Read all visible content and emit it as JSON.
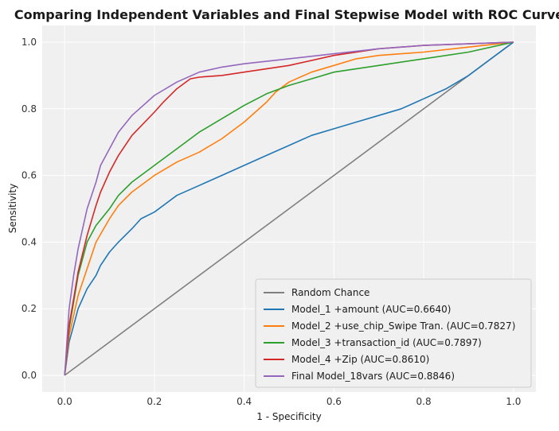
{
  "chart_data": {
    "type": "line",
    "title": "Comparing Independent Variables and Final Stepwise Model with ROC Curve",
    "xlabel": "1 - Specificity",
    "ylabel": "Sensitivity",
    "xlim": [
      -0.05,
      1.05
    ],
    "ylim": [
      -0.05,
      1.05
    ],
    "xticks": [
      "0.0",
      "0.2",
      "0.4",
      "0.6",
      "0.8",
      "1.0"
    ],
    "yticks": [
      "0.0",
      "0.2",
      "0.4",
      "0.6",
      "0.8",
      "1.0"
    ],
    "grid": true,
    "legend_position": "lower-right",
    "background_color": "#f0f0f0",
    "series": [
      {
        "name": "Random Chance",
        "color": "#808080",
        "x": [
          0,
          1
        ],
        "y": [
          0,
          1
        ]
      },
      {
        "name": "Model_1 +amount (AUC=0.6640)",
        "color": "#1f77b4",
        "x": [
          0,
          0.01,
          0.02,
          0.03,
          0.05,
          0.07,
          0.08,
          0.1,
          0.12,
          0.15,
          0.17,
          0.2,
          0.25,
          0.3,
          0.35,
          0.4,
          0.45,
          0.5,
          0.55,
          0.6,
          0.65,
          0.7,
          0.75,
          0.8,
          0.85,
          0.9,
          0.95,
          1.0
        ],
        "y": [
          0,
          0.1,
          0.15,
          0.2,
          0.26,
          0.3,
          0.33,
          0.37,
          0.4,
          0.44,
          0.47,
          0.49,
          0.54,
          0.57,
          0.6,
          0.63,
          0.66,
          0.69,
          0.72,
          0.74,
          0.76,
          0.78,
          0.8,
          0.83,
          0.86,
          0.9,
          0.95,
          1.0
        ]
      },
      {
        "name": "Model_2 +use_chip_Swipe Tran. (AUC=0.7827)",
        "color": "#ff7f0e",
        "x": [
          0,
          0.01,
          0.02,
          0.03,
          0.05,
          0.07,
          0.1,
          0.12,
          0.15,
          0.2,
          0.25,
          0.3,
          0.35,
          0.4,
          0.45,
          0.47,
          0.5,
          0.55,
          0.6,
          0.65,
          0.7,
          0.8,
          0.9,
          1.0
        ],
        "y": [
          0,
          0.12,
          0.18,
          0.24,
          0.32,
          0.4,
          0.47,
          0.51,
          0.55,
          0.6,
          0.64,
          0.67,
          0.71,
          0.76,
          0.82,
          0.85,
          0.88,
          0.91,
          0.93,
          0.95,
          0.96,
          0.97,
          0.985,
          1.0
        ]
      },
      {
        "name": "Model_3 +transaction_id (AUC=0.7897)",
        "color": "#2ca02c",
        "x": [
          0,
          0.01,
          0.02,
          0.03,
          0.05,
          0.07,
          0.1,
          0.12,
          0.15,
          0.2,
          0.25,
          0.3,
          0.35,
          0.4,
          0.45,
          0.5,
          0.55,
          0.6,
          0.7,
          0.8,
          0.9,
          1.0
        ],
        "y": [
          0,
          0.14,
          0.22,
          0.3,
          0.4,
          0.45,
          0.5,
          0.54,
          0.58,
          0.63,
          0.68,
          0.73,
          0.77,
          0.81,
          0.845,
          0.87,
          0.89,
          0.91,
          0.93,
          0.95,
          0.97,
          1.0
        ]
      },
      {
        "name": "Model_4 +Zip (AUC=0.8610)",
        "color": "#d62728",
        "x": [
          0,
          0.01,
          0.02,
          0.03,
          0.05,
          0.07,
          0.08,
          0.1,
          0.12,
          0.15,
          0.2,
          0.22,
          0.25,
          0.28,
          0.3,
          0.35,
          0.4,
          0.5,
          0.6,
          0.7,
          0.8,
          0.9,
          1.0
        ],
        "y": [
          0,
          0.15,
          0.23,
          0.31,
          0.42,
          0.51,
          0.55,
          0.61,
          0.66,
          0.72,
          0.79,
          0.82,
          0.86,
          0.89,
          0.895,
          0.9,
          0.91,
          0.93,
          0.96,
          0.98,
          0.99,
          0.995,
          1.0
        ]
      },
      {
        "name": "Final Model_18vars (AUC=0.8846)",
        "color": "#9467bd",
        "x": [
          0,
          0.01,
          0.02,
          0.03,
          0.05,
          0.07,
          0.08,
          0.1,
          0.12,
          0.15,
          0.2,
          0.25,
          0.3,
          0.35,
          0.4,
          0.5,
          0.6,
          0.7,
          0.8,
          0.9,
          1.0
        ],
        "y": [
          0,
          0.2,
          0.3,
          0.38,
          0.5,
          0.58,
          0.63,
          0.68,
          0.73,
          0.78,
          0.84,
          0.88,
          0.91,
          0.925,
          0.935,
          0.95,
          0.965,
          0.98,
          0.99,
          0.995,
          1.0
        ]
      }
    ]
  }
}
